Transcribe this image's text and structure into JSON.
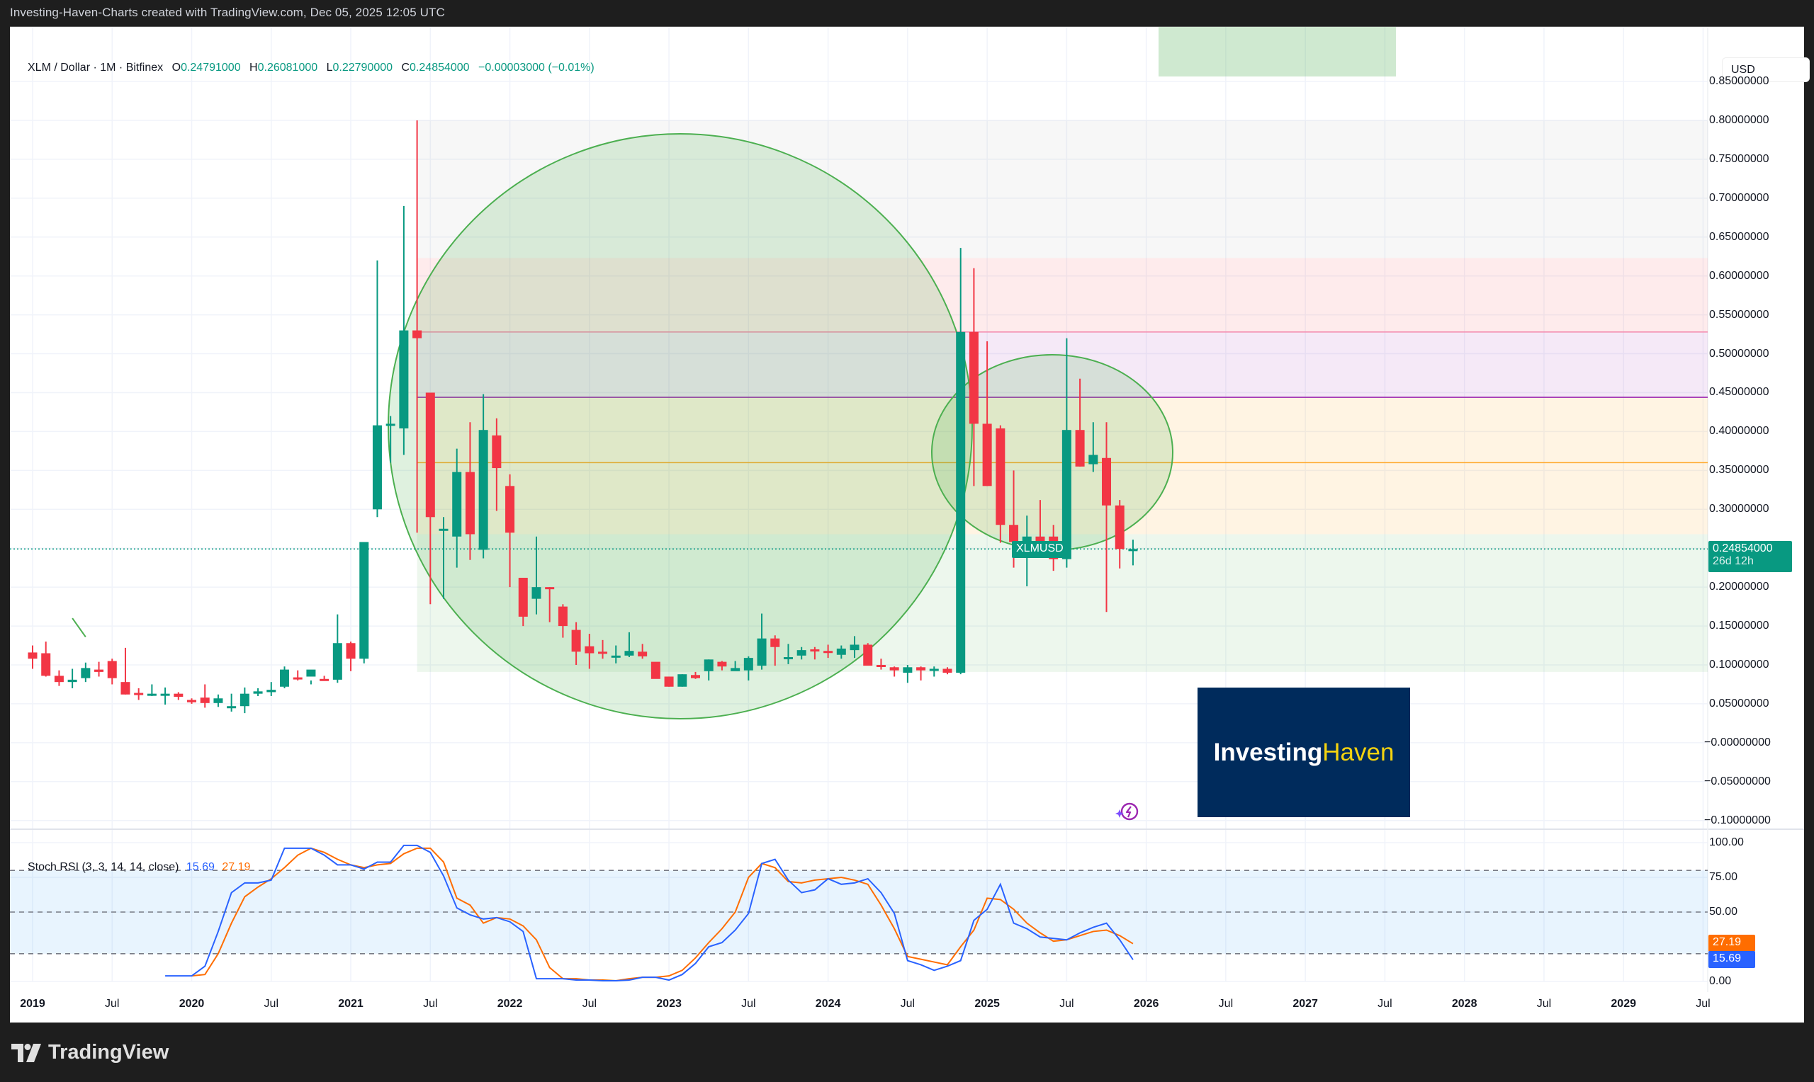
{
  "credit": "Investing-Haven-Charts created with TradingView.com, Dec 05, 2025 12:05 UTC",
  "legend": {
    "symbol": "XLM / Dollar · 1M · Bitfinex",
    "open_label": "O",
    "open": "0.24791000",
    "high_label": "H",
    "high": "0.26081000",
    "low_label": "L",
    "low": "0.22790000",
    "close_label": "C",
    "close": "0.24854000",
    "change": "−0.00003000 (−0.01%)"
  },
  "price_axis": {
    "currency": "USD",
    "ticks": [
      "0.85000000",
      "0.80000000",
      "0.75000000",
      "0.70000000",
      "0.65000000",
      "0.60000000",
      "0.55000000",
      "0.50000000",
      "0.45000000",
      "0.40000000",
      "0.35000000",
      "0.30000000",
      "0.25000000",
      "0.20000000",
      "0.15000000",
      "0.10000000",
      "0.05000000",
      "−0.00000000",
      "−0.05000000",
      "−0.10000000"
    ],
    "last_price_tag": {
      "symbol": "XLMUSD",
      "price": "0.24854000",
      "countdown": "26d 12h"
    }
  },
  "stoch_rsi": {
    "title": "Stoch RSI (3, 3, 14, 14, close)",
    "k_value": "15.69",
    "d_value": "27.19",
    "ticks": [
      "100.00",
      "75.00",
      "50.00",
      "0.00"
    ],
    "k_color": "#2962ff",
    "d_color": "#ff6d00"
  },
  "x_axis": {
    "labels": [
      {
        "t": "2019",
        "m": 0,
        "year": true
      },
      {
        "t": "Jul",
        "m": 6
      },
      {
        "t": "2020",
        "m": 12,
        "year": true
      },
      {
        "t": "Jul",
        "m": 18
      },
      {
        "t": "2021",
        "m": 24,
        "year": true
      },
      {
        "t": "Jul",
        "m": 30
      },
      {
        "t": "2022",
        "m": 36,
        "year": true
      },
      {
        "t": "Jul",
        "m": 42
      },
      {
        "t": "2023",
        "m": 48,
        "year": true
      },
      {
        "t": "Jul",
        "m": 54
      },
      {
        "t": "2024",
        "m": 60,
        "year": true
      },
      {
        "t": "Jul",
        "m": 66
      },
      {
        "t": "2025",
        "m": 72,
        "year": true
      },
      {
        "t": "Jul",
        "m": 78
      },
      {
        "t": "2026",
        "m": 84,
        "year": true
      },
      {
        "t": "Jul",
        "m": 90
      },
      {
        "t": "2027",
        "m": 96,
        "year": true
      },
      {
        "t": "Jul",
        "m": 102
      },
      {
        "t": "2028",
        "m": 108,
        "year": true
      },
      {
        "t": "Jul",
        "m": 114
      },
      {
        "t": "2029",
        "m": 120,
        "year": true
      },
      {
        "t": "Jul",
        "m": 126
      }
    ]
  },
  "watermark_logo": {
    "part1": "Investing",
    "part2": "Haven"
  },
  "footer": {
    "brand": "TradingView"
  },
  "colors": {
    "up": "#089981",
    "down": "#f23645",
    "circle": "#4caf50"
  },
  "chart_data": {
    "type": "candlestick",
    "title": "XLM / Dollar · 1M · Bitfinex",
    "ylabel": "USD",
    "ylim": [
      -0.1,
      0.85
    ],
    "grid": true,
    "x_start": "2019-01",
    "candles": [
      [
        0,
        0.116,
        0.125,
        0.095,
        0.108
      ],
      [
        1,
        0.115,
        0.13,
        0.085,
        0.086
      ],
      [
        2,
        0.086,
        0.093,
        0.073,
        0.078
      ],
      [
        3,
        0.078,
        0.095,
        0.07,
        0.081
      ],
      [
        4,
        0.083,
        0.103,
        0.078,
        0.096
      ],
      [
        5,
        0.094,
        0.104,
        0.085,
        0.091
      ],
      [
        6,
        0.105,
        0.108,
        0.075,
        0.083
      ],
      [
        7,
        0.078,
        0.122,
        0.062,
        0.062
      ],
      [
        8,
        0.064,
        0.07,
        0.055,
        0.062
      ],
      [
        9,
        0.062,
        0.075,
        0.06,
        0.063
      ],
      [
        10,
        0.063,
        0.071,
        0.049,
        0.063
      ],
      [
        11,
        0.063,
        0.065,
        0.055,
        0.059
      ],
      [
        12,
        0.055,
        0.057,
        0.05,
        0.052
      ],
      [
        13,
        0.058,
        0.075,
        0.045,
        0.051
      ],
      [
        14,
        0.051,
        0.062,
        0.046,
        0.057
      ],
      [
        15,
        0.047,
        0.063,
        0.04,
        0.047
      ],
      [
        16,
        0.047,
        0.071,
        0.038,
        0.063
      ],
      [
        17,
        0.063,
        0.07,
        0.06,
        0.066
      ],
      [
        18,
        0.065,
        0.078,
        0.06,
        0.068
      ],
      [
        19,
        0.072,
        0.098,
        0.07,
        0.094
      ],
      [
        20,
        0.084,
        0.093,
        0.08,
        0.082
      ],
      [
        21,
        0.085,
        0.08,
        0.075,
        0.094
      ],
      [
        22,
        0.082,
        0.086,
        0.08,
        0.081
      ],
      [
        23,
        0.081,
        0.165,
        0.077,
        0.128
      ],
      [
        24,
        0.128,
        0.13,
        0.092,
        0.108
      ],
      [
        25,
        0.108,
        0.16,
        0.102,
        0.258
      ],
      [
        26,
        0.3,
        0.62,
        0.29,
        0.408
      ],
      [
        27,
        0.41,
        0.42,
        0.36,
        0.41
      ],
      [
        28,
        0.404,
        0.69,
        0.37,
        0.53
      ],
      [
        29,
        0.53,
        0.8,
        0.27,
        0.52
      ],
      [
        30,
        0.45,
        0.447,
        0.178,
        0.29
      ],
      [
        31,
        0.275,
        0.29,
        0.185,
        0.275
      ],
      [
        32,
        0.265,
        0.378,
        0.225,
        0.348
      ],
      [
        33,
        0.348,
        0.412,
        0.235,
        0.268
      ],
      [
        34,
        0.248,
        0.448,
        0.237,
        0.402
      ],
      [
        35,
        0.395,
        0.417,
        0.298,
        0.353
      ],
      [
        36,
        0.33,
        0.345,
        0.2,
        0.27
      ],
      [
        37,
        0.212,
        0.212,
        0.15,
        0.162
      ],
      [
        38,
        0.185,
        0.265,
        0.165,
        0.2
      ],
      [
        39,
        0.2,
        0.2,
        0.155,
        0.198
      ],
      [
        40,
        0.175,
        0.178,
        0.135,
        0.15
      ],
      [
        41,
        0.145,
        0.155,
        0.1,
        0.117
      ],
      [
        42,
        0.124,
        0.14,
        0.095,
        0.115
      ],
      [
        43,
        0.117,
        0.132,
        0.108,
        0.115
      ],
      [
        44,
        0.112,
        0.125,
        0.102,
        0.112
      ],
      [
        45,
        0.112,
        0.142,
        0.11,
        0.118
      ],
      [
        46,
        0.117,
        0.127,
        0.108,
        0.111
      ],
      [
        47,
        0.104,
        0.102,
        0.085,
        0.082
      ],
      [
        48,
        0.085,
        0.085,
        0.072,
        0.072
      ],
      [
        49,
        0.072,
        0.088,
        0.072,
        0.088
      ],
      [
        50,
        0.087,
        0.091,
        0.082,
        0.083
      ],
      [
        51,
        0.092,
        0.107,
        0.08,
        0.107
      ],
      [
        52,
        0.104,
        0.105,
        0.093,
        0.098
      ],
      [
        53,
        0.092,
        0.105,
        0.094,
        0.096
      ],
      [
        54,
        0.093,
        0.111,
        0.08,
        0.109
      ],
      [
        55,
        0.099,
        0.166,
        0.094,
        0.134
      ],
      [
        56,
        0.134,
        0.138,
        0.099,
        0.123
      ],
      [
        57,
        0.108,
        0.127,
        0.101,
        0.11
      ],
      [
        58,
        0.112,
        0.123,
        0.107,
        0.119
      ],
      [
        59,
        0.12,
        0.123,
        0.107,
        0.119
      ],
      [
        60,
        0.118,
        0.126,
        0.109,
        0.116
      ],
      [
        61,
        0.113,
        0.125,
        0.108,
        0.121
      ],
      [
        62,
        0.119,
        0.137,
        0.109,
        0.126
      ],
      [
        63,
        0.126,
        0.128,
        0.105,
        0.099
      ],
      [
        64,
        0.1,
        0.108,
        0.094,
        0.099
      ],
      [
        65,
        0.097,
        0.098,
        0.085,
        0.093
      ],
      [
        66,
        0.09,
        0.1,
        0.077,
        0.097
      ],
      [
        67,
        0.097,
        0.098,
        0.08,
        0.093
      ],
      [
        68,
        0.093,
        0.098,
        0.085,
        0.095
      ],
      [
        69,
        0.095,
        0.097,
        0.088,
        0.09
      ],
      [
        70,
        0.09,
        0.636,
        0.088,
        0.528
      ],
      [
        71,
        0.528,
        0.61,
        0.33,
        0.41
      ],
      [
        72,
        0.41,
        0.516,
        0.33,
        0.33
      ],
      [
        73,
        0.404,
        0.408,
        0.257,
        0.28
      ],
      [
        74,
        0.28,
        0.35,
        0.225,
        0.258
      ],
      [
        75,
        0.258,
        0.292,
        0.201,
        0.265
      ],
      [
        76,
        0.265,
        0.312,
        0.248,
        0.258
      ],
      [
        77,
        0.265,
        0.28,
        0.221,
        0.236
      ],
      [
        78,
        0.236,
        0.52,
        0.225,
        0.402
      ],
      [
        79,
        0.402,
        0.468,
        0.355,
        0.355
      ],
      [
        80,
        0.358,
        0.412,
        0.348,
        0.37
      ],
      [
        81,
        0.366,
        0.412,
        0.168,
        0.305
      ],
      [
        82,
        0.305,
        0.312,
        0.224,
        0.249
      ],
      [
        83,
        0.248,
        0.261,
        0.228,
        0.249
      ]
    ],
    "stoch_rsi_k": [
      [
        10,
        4
      ],
      [
        11,
        4
      ],
      [
        12,
        4
      ],
      [
        13,
        11
      ],
      [
        14,
        36
      ],
      [
        15,
        64
      ],
      [
        16,
        71
      ],
      [
        17,
        71
      ],
      [
        18,
        73
      ],
      [
        19,
        96
      ],
      [
        20,
        96
      ],
      [
        21,
        96
      ],
      [
        22,
        91
      ],
      [
        23,
        84
      ],
      [
        24,
        84
      ],
      [
        25,
        81
      ],
      [
        26,
        86
      ],
      [
        27,
        86
      ],
      [
        28,
        98
      ],
      [
        29,
        98
      ],
      [
        30,
        93
      ],
      [
        31,
        76
      ],
      [
        32,
        53
      ],
      [
        33,
        48
      ],
      [
        34,
        45
      ],
      [
        35,
        46
      ],
      [
        36,
        43
      ],
      [
        37,
        36
      ],
      [
        38,
        2
      ],
      [
        39,
        2
      ],
      [
        40,
        2
      ],
      [
        41,
        1
      ],
      [
        42,
        1
      ],
      [
        43,
        0.5
      ],
      [
        44,
        0.5
      ],
      [
        45,
        1
      ],
      [
        46,
        3
      ],
      [
        47,
        3
      ],
      [
        48,
        1
      ],
      [
        49,
        5
      ],
      [
        50,
        13
      ],
      [
        51,
        25
      ],
      [
        52,
        28
      ],
      [
        53,
        37
      ],
      [
        54,
        49
      ],
      [
        55,
        85
      ],
      [
        56,
        88
      ],
      [
        57,
        73
      ],
      [
        58,
        64
      ],
      [
        59,
        66
      ],
      [
        60,
        74
      ],
      [
        61,
        70
      ],
      [
        62,
        71
      ],
      [
        63,
        74
      ],
      [
        64,
        64
      ],
      [
        65,
        49
      ],
      [
        66,
        15
      ],
      [
        67,
        12
      ],
      [
        68,
        8
      ],
      [
        69,
        11
      ],
      [
        70,
        15
      ],
      [
        71,
        44
      ],
      [
        72,
        52
      ],
      [
        73,
        70
      ],
      [
        74,
        42
      ],
      [
        75,
        38
      ],
      [
        76,
        32
      ],
      [
        77,
        31
      ],
      [
        78,
        30
      ],
      [
        79,
        35
      ],
      [
        80,
        39
      ],
      [
        81,
        42
      ],
      [
        82,
        30
      ],
      [
        83,
        15.69
      ]
    ],
    "stoch_rsi_d": [
      [
        12,
        4
      ],
      [
        13,
        5
      ],
      [
        14,
        20
      ],
      [
        15,
        42
      ],
      [
        16,
        61
      ],
      [
        17,
        68
      ],
      [
        18,
        74
      ],
      [
        19,
        82
      ],
      [
        20,
        91
      ],
      [
        21,
        96
      ],
      [
        22,
        93
      ],
      [
        23,
        88
      ],
      [
        24,
        84
      ],
      [
        25,
        82
      ],
      [
        26,
        84
      ],
      [
        27,
        85
      ],
      [
        28,
        92
      ],
      [
        29,
        96
      ],
      [
        30,
        96
      ],
      [
        31,
        86
      ],
      [
        32,
        60
      ],
      [
        33,
        55
      ],
      [
        34,
        42
      ],
      [
        35,
        46
      ],
      [
        36,
        45
      ],
      [
        37,
        40
      ],
      [
        38,
        30
      ],
      [
        39,
        10
      ],
      [
        40,
        2
      ],
      [
        41,
        2
      ],
      [
        42,
        1
      ],
      [
        43,
        1
      ],
      [
        44,
        0.5
      ],
      [
        45,
        2
      ],
      [
        46,
        3
      ],
      [
        47,
        3
      ],
      [
        48,
        4
      ],
      [
        49,
        8
      ],
      [
        50,
        17
      ],
      [
        51,
        28
      ],
      [
        52,
        38
      ],
      [
        53,
        50
      ],
      [
        54,
        75
      ],
      [
        55,
        85
      ],
      [
        56,
        82
      ],
      [
        57,
        72
      ],
      [
        58,
        71
      ],
      [
        59,
        73
      ],
      [
        60,
        74
      ],
      [
        61,
        75
      ],
      [
        62,
        73
      ],
      [
        63,
        70
      ],
      [
        64,
        55
      ],
      [
        65,
        38
      ],
      [
        66,
        18
      ],
      [
        67,
        16
      ],
      [
        68,
        14
      ],
      [
        69,
        12
      ],
      [
        70,
        25
      ],
      [
        71,
        37
      ],
      [
        72,
        60
      ],
      [
        73,
        59
      ],
      [
        74,
        52
      ],
      [
        75,
        42
      ],
      [
        76,
        35
      ],
      [
        77,
        29
      ],
      [
        78,
        30
      ],
      [
        79,
        33
      ],
      [
        80,
        36
      ],
      [
        81,
        37
      ],
      [
        82,
        33
      ],
      [
        83,
        27.19
      ]
    ],
    "annotations": {
      "fib_bands": [
        {
          "from_m": 29,
          "top": 0.8,
          "bottom": 0.623,
          "color": "rgba(150,150,150,0.08)"
        },
        {
          "from_m": 29,
          "top": 0.623,
          "bottom": 0.528,
          "color": "rgba(242,54,69,0.10)"
        },
        {
          "from_m": 29,
          "top": 0.528,
          "bottom": 0.444,
          "color": "rgba(156,39,176,0.10)"
        },
        {
          "from_m": 29,
          "top": 0.444,
          "bottom": 0.268,
          "color": "rgba(255,152,0,0.11)"
        },
        {
          "from_m": 29,
          "top": 0.268,
          "bottom": 0.091,
          "color": "rgba(76,175,80,0.10)"
        }
      ],
      "fib_lines": [
        {
          "price": 0.528,
          "color": "#f48fb1"
        },
        {
          "price": 0.444,
          "color": "#9c27b0"
        },
        {
          "price": 0.36,
          "color": "#ffa726"
        }
      ],
      "top_rect": {
        "x1": 1635,
        "x2": 1970,
        "y1": 37,
        "y2": 107,
        "color": "rgba(76,175,80,0.27)"
      },
      "circles": [
        {
          "cx": 960,
          "cy": 601,
          "rx": 412,
          "ry": 413
        },
        {
          "cx": 1485,
          "cy": 638,
          "rx": 170,
          "ry": 138
        }
      ],
      "small_line": {
        "from_m": 3,
        "from_p": 0.16,
        "to_m": 4,
        "to_p": 0.136
      }
    }
  }
}
